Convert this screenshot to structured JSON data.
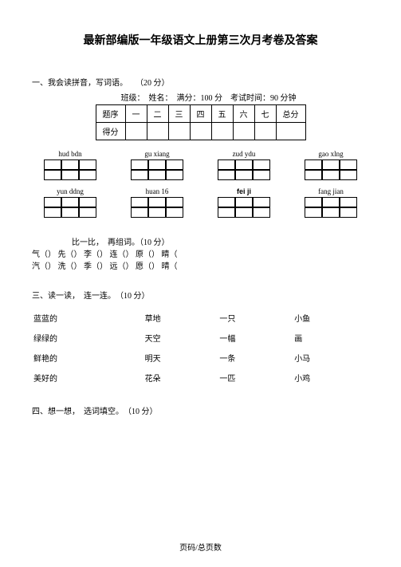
{
  "title": "最新部编版一年级语文上册第三次月考卷及答案",
  "q1": {
    "heading": "一、我会读拼音，写词语。　　（20 分）",
    "meta": "班级：　姓名：　满分：100 分　考试时间：90 分钟",
    "score_headers": [
      "题序",
      "一",
      "二",
      "三",
      "四",
      "五",
      "六",
      "七",
      "总分"
    ],
    "score_row2": "得分",
    "row1": [
      "hud bdn",
      "gu xiang",
      "zud ydu",
      "gao xlng"
    ],
    "row2": [
      "yun ddng",
      "huan 16",
      "fei ji",
      "fang jian"
    ]
  },
  "q2": {
    "heading": "比一比，　再组词。（10 分）",
    "line1": [
      "气（",
      "） 先（",
      "） 李（",
      "） 连（",
      "） 原（",
      "） 睛（"
    ],
    "line2": [
      "汽（",
      "） 洗（",
      "） 季（",
      "） 远（",
      "） 愿（",
      "） 晴（"
    ]
  },
  "q3": {
    "heading": "三、读一读，　连一连。　（10 分）",
    "rows": [
      [
        "蓝蓝的",
        "草地",
        "一只",
        "小鱼"
      ],
      [
        "绿绿的",
        "天空",
        "一幅",
        "画"
      ],
      [
        "鲜艳的",
        "明天",
        "一条",
        "小马"
      ],
      [
        "美好的",
        "花朵",
        "一匹",
        "小鸡"
      ]
    ]
  },
  "q4": {
    "heading": "四、想一想，　选词填空。　（10 分）"
  },
  "footer": "页码/总页数"
}
